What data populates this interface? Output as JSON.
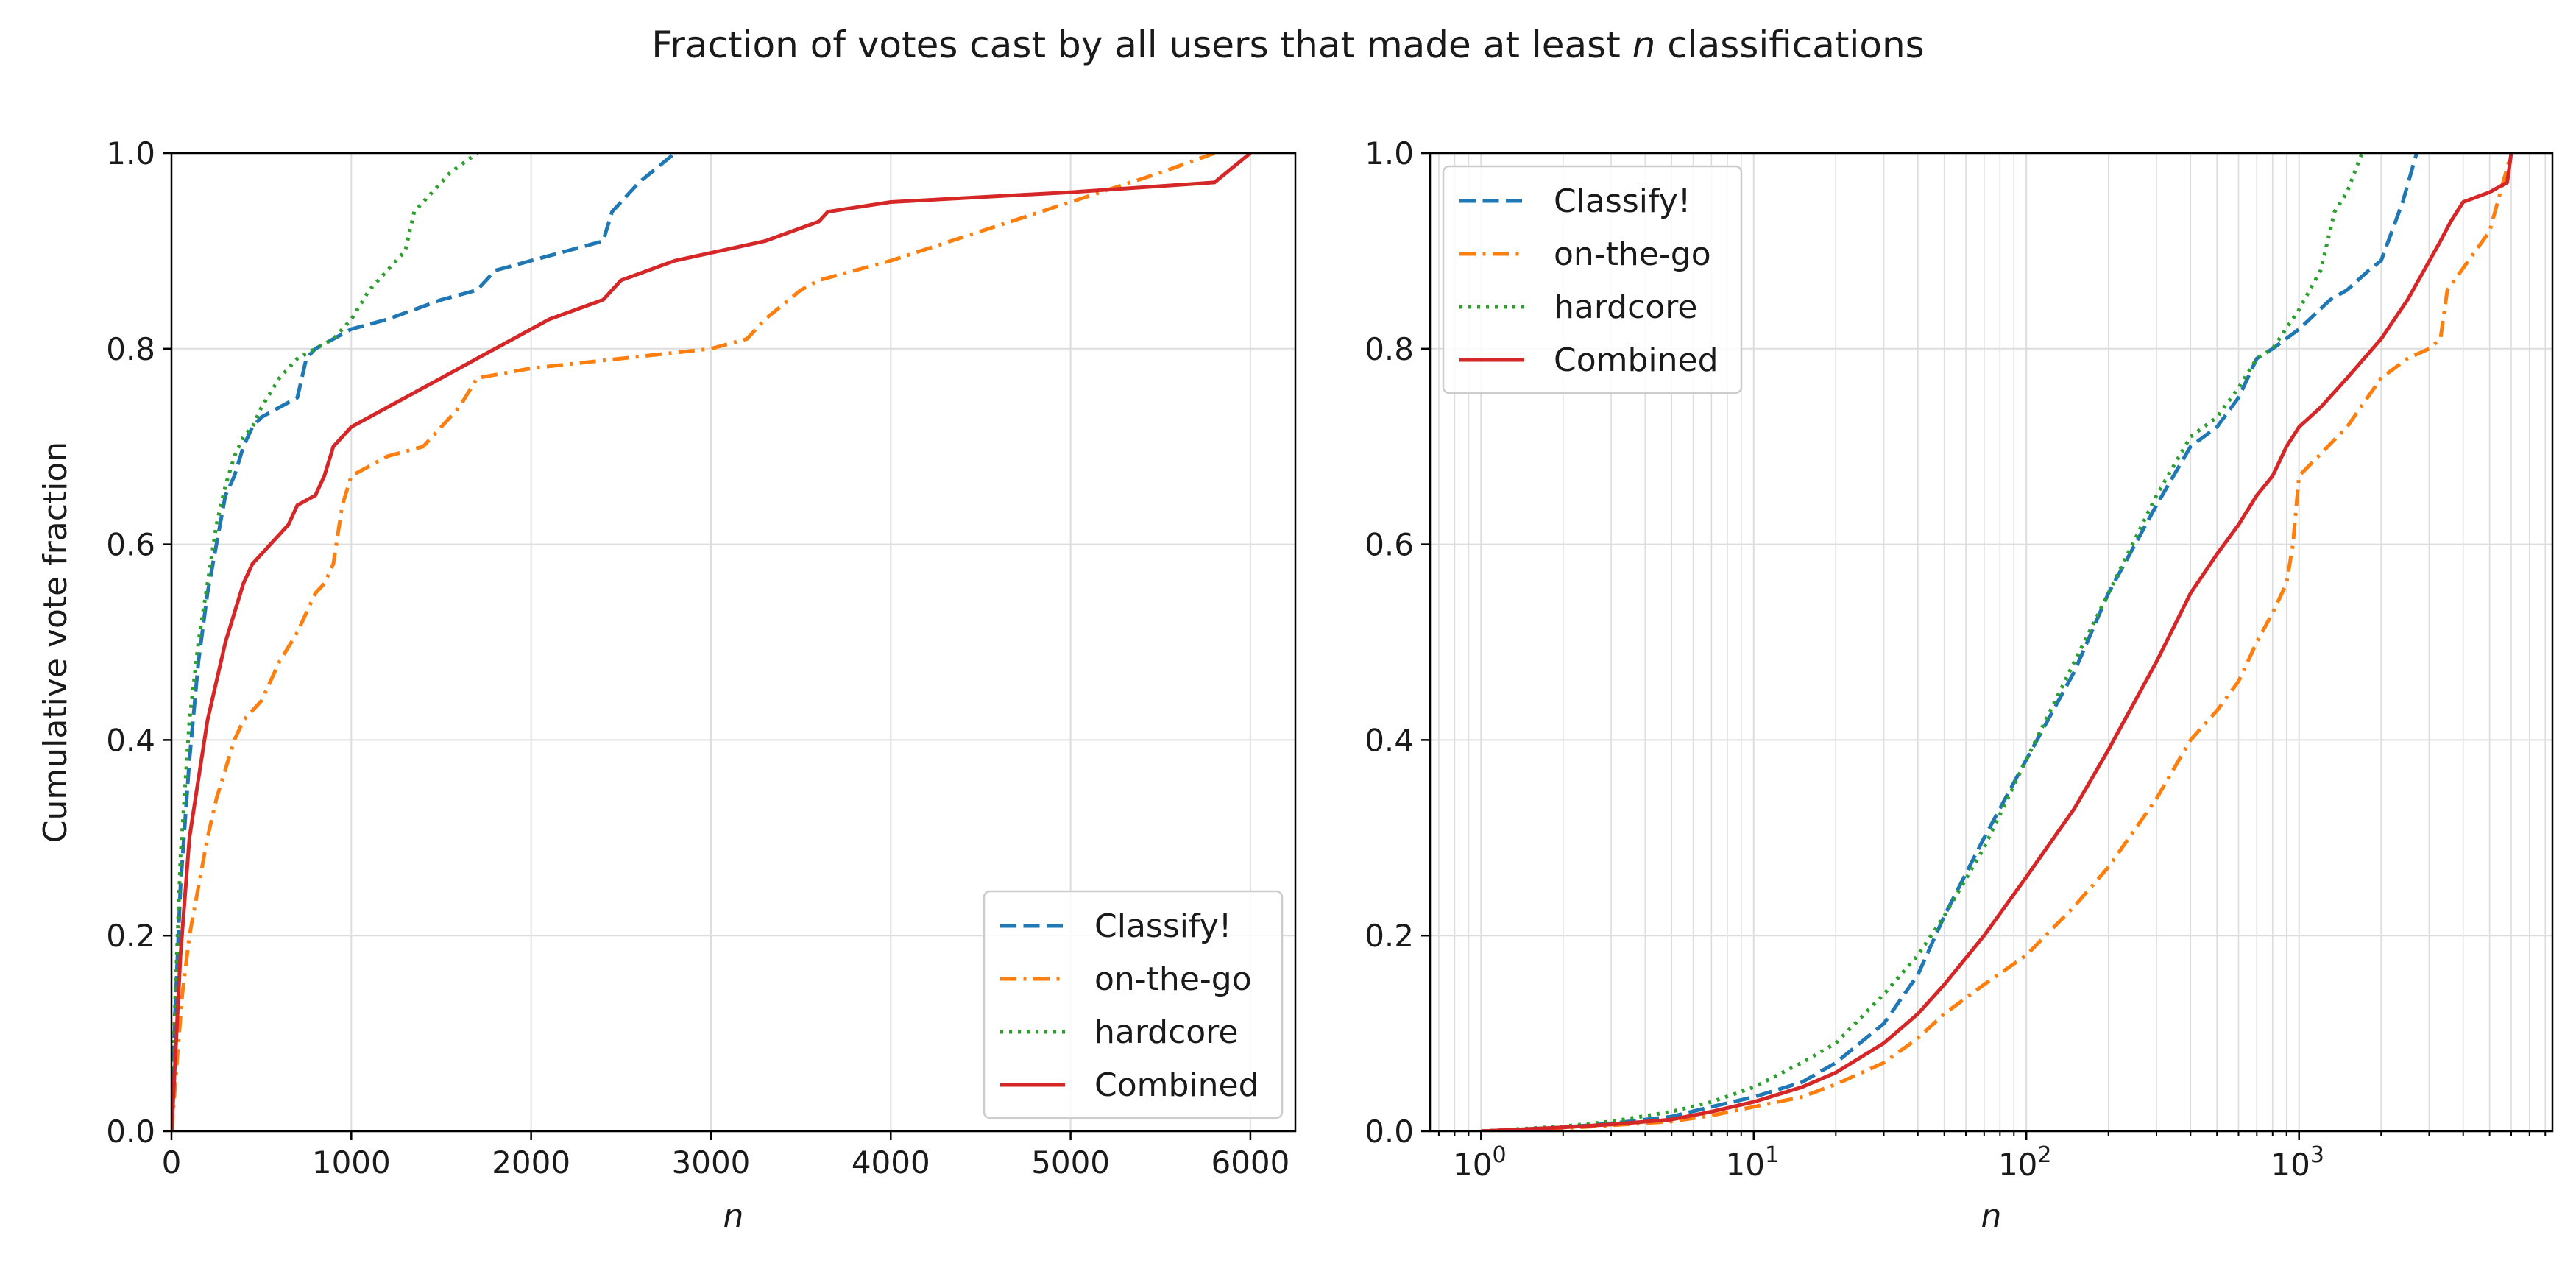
{
  "figure": {
    "title_pre": "Fraction of votes cast by all users that made at least ",
    "title_var": "n",
    "title_post": " classifications"
  },
  "colors": {
    "classify": "#1f77b4",
    "onthego": "#ff7f0e",
    "hardcore": "#2ca02c",
    "combined": "#d62728",
    "grid": "#dddddd",
    "axis": "#000000"
  },
  "chart_data": [
    {
      "type": "line",
      "xscale": "linear",
      "xlabel": "n",
      "ylabel": "Cumulative vote fraction",
      "xlim": [
        0,
        6250
      ],
      "ylim": [
        0,
        1
      ],
      "xticks": [
        0,
        1000,
        2000,
        3000,
        4000,
        5000,
        6000
      ],
      "xtick_labels": [
        "0",
        "1000",
        "2000",
        "3000",
        "4000",
        "5000",
        "6000"
      ],
      "yticks": [
        0,
        0.2,
        0.4,
        0.6,
        0.8,
        1.0
      ],
      "ytick_labels": [
        "0.0",
        "0.2",
        "0.4",
        "0.6",
        "0.8",
        "1.0"
      ],
      "grid": true,
      "legend_position": "lower-right",
      "series": [
        {
          "name": "Classify!",
          "style": "dashed",
          "x": [
            1,
            20,
            50,
            100,
            150,
            200,
            250,
            300,
            350,
            400,
            450,
            500,
            600,
            700,
            750,
            800,
            900,
            1000,
            1200,
            1500,
            1700,
            1800,
            2000,
            2200,
            2400,
            2450,
            2500,
            2600,
            2800
          ],
          "y": [
            0.0,
            0.12,
            0.25,
            0.38,
            0.48,
            0.55,
            0.6,
            0.65,
            0.67,
            0.7,
            0.72,
            0.73,
            0.74,
            0.75,
            0.79,
            0.8,
            0.81,
            0.82,
            0.83,
            0.85,
            0.86,
            0.88,
            0.89,
            0.9,
            0.91,
            0.94,
            0.95,
            0.97,
            1.0
          ]
        },
        {
          "name": "on-the-go",
          "style": "dashdot",
          "x": [
            1,
            30,
            60,
            100,
            150,
            200,
            250,
            300,
            350,
            400,
            450,
            500,
            550,
            600,
            700,
            750,
            800,
            850,
            900,
            950,
            1000,
            1200,
            1400,
            1500,
            1600,
            1700,
            2000,
            2500,
            3000,
            3200,
            3300,
            3500,
            3600,
            4000,
            4500,
            5000,
            5500,
            5800
          ],
          "y": [
            0.0,
            0.07,
            0.14,
            0.2,
            0.25,
            0.3,
            0.34,
            0.37,
            0.4,
            0.42,
            0.43,
            0.44,
            0.46,
            0.48,
            0.51,
            0.53,
            0.55,
            0.56,
            0.58,
            0.64,
            0.67,
            0.69,
            0.7,
            0.72,
            0.74,
            0.77,
            0.78,
            0.79,
            0.8,
            0.81,
            0.83,
            0.86,
            0.87,
            0.89,
            0.92,
            0.95,
            0.98,
            1.0
          ]
        },
        {
          "name": "hardcore",
          "style": "dotted",
          "x": [
            1,
            20,
            50,
            100,
            150,
            200,
            250,
            300,
            350,
            400,
            450,
            500,
            600,
            700,
            800,
            900,
            1000,
            1100,
            1200,
            1300,
            1350,
            1450,
            1550,
            1700
          ],
          "y": [
            0.0,
            0.13,
            0.28,
            0.42,
            0.5,
            0.56,
            0.62,
            0.66,
            0.69,
            0.71,
            0.72,
            0.74,
            0.77,
            0.79,
            0.8,
            0.81,
            0.83,
            0.86,
            0.88,
            0.9,
            0.94,
            0.96,
            0.98,
            1.0
          ]
        },
        {
          "name": "Combined",
          "style": "solid",
          "x": [
            1,
            50,
            100,
            150,
            200,
            250,
            300,
            350,
            400,
            450,
            500,
            550,
            600,
            650,
            700,
            800,
            850,
            900,
            950,
            1000,
            1100,
            1200,
            1300,
            1400,
            1500,
            1600,
            1700,
            1900,
            2100,
            2400,
            2500,
            2800,
            3300,
            3600,
            3650,
            4000,
            5000,
            5800,
            6000
          ],
          "y": [
            0.0,
            0.18,
            0.3,
            0.36,
            0.42,
            0.46,
            0.5,
            0.53,
            0.56,
            0.58,
            0.59,
            0.6,
            0.61,
            0.62,
            0.64,
            0.65,
            0.67,
            0.7,
            0.71,
            0.72,
            0.73,
            0.74,
            0.75,
            0.76,
            0.77,
            0.78,
            0.79,
            0.81,
            0.83,
            0.85,
            0.87,
            0.89,
            0.91,
            0.93,
            0.94,
            0.95,
            0.96,
            0.97,
            1.0
          ]
        }
      ]
    },
    {
      "type": "line",
      "xscale": "log",
      "xlabel": "n",
      "ylabel": "",
      "xlim": [
        0.65,
        8500
      ],
      "ylim": [
        0,
        1
      ],
      "xticks": [
        1,
        10,
        100,
        1000
      ],
      "xtick_bases": [
        "10",
        "10",
        "10",
        "10"
      ],
      "xtick_exponents": [
        "0",
        "1",
        "2",
        "3"
      ],
      "yticks": [
        0,
        0.2,
        0.4,
        0.6,
        0.8,
        1.0
      ],
      "ytick_labels": [
        "0.0",
        "0.2",
        "0.4",
        "0.6",
        "0.8",
        "1.0"
      ],
      "grid": true,
      "legend_position": "upper-left",
      "series": [
        {
          "name": "Classify!",
          "style": "dashed",
          "x": [
            1,
            2,
            3,
            5,
            7,
            10,
            15,
            20,
            30,
            40,
            50,
            70,
            100,
            150,
            200,
            300,
            400,
            500,
            600,
            700,
            800,
            1000,
            1300,
            1500,
            1800,
            2000,
            2400,
            2700
          ],
          "y": [
            0.0,
            0.004,
            0.008,
            0.015,
            0.025,
            0.035,
            0.05,
            0.07,
            0.11,
            0.16,
            0.22,
            0.3,
            0.38,
            0.47,
            0.55,
            0.64,
            0.7,
            0.72,
            0.75,
            0.79,
            0.8,
            0.82,
            0.85,
            0.86,
            0.88,
            0.89,
            0.95,
            1.0
          ]
        },
        {
          "name": "on-the-go",
          "style": "dashdot",
          "x": [
            1,
            2,
            3,
            5,
            7,
            10,
            15,
            20,
            30,
            40,
            50,
            70,
            100,
            150,
            200,
            300,
            400,
            500,
            600,
            700,
            800,
            900,
            950,
            1000,
            1500,
            2000,
            2500,
            3000,
            3300,
            3500,
            5000,
            6000
          ],
          "y": [
            0.0,
            0.003,
            0.006,
            0.01,
            0.016,
            0.025,
            0.035,
            0.048,
            0.07,
            0.095,
            0.12,
            0.15,
            0.18,
            0.23,
            0.27,
            0.34,
            0.4,
            0.43,
            0.46,
            0.5,
            0.53,
            0.56,
            0.6,
            0.67,
            0.72,
            0.77,
            0.79,
            0.8,
            0.81,
            0.86,
            0.92,
            1.0
          ]
        },
        {
          "name": "hardcore",
          "style": "dotted",
          "x": [
            1,
            2,
            3,
            5,
            7,
            10,
            15,
            20,
            30,
            40,
            50,
            70,
            100,
            150,
            200,
            300,
            400,
            500,
            600,
            700,
            800,
            1000,
            1200,
            1350,
            1500,
            1700
          ],
          "y": [
            0.0,
            0.005,
            0.01,
            0.02,
            0.03,
            0.045,
            0.07,
            0.09,
            0.14,
            0.18,
            0.22,
            0.29,
            0.38,
            0.48,
            0.55,
            0.65,
            0.71,
            0.73,
            0.76,
            0.79,
            0.8,
            0.84,
            0.88,
            0.94,
            0.96,
            1.0
          ]
        },
        {
          "name": "Combined",
          "style": "solid",
          "x": [
            1,
            2,
            3,
            5,
            7,
            10,
            15,
            20,
            30,
            40,
            50,
            70,
            100,
            150,
            200,
            300,
            400,
            500,
            600,
            700,
            800,
            900,
            1000,
            1200,
            1500,
            2000,
            2500,
            3300,
            3600,
            4000,
            5000,
            5800,
            6000
          ],
          "y": [
            0.0,
            0.004,
            0.007,
            0.012,
            0.02,
            0.03,
            0.045,
            0.06,
            0.09,
            0.12,
            0.15,
            0.2,
            0.26,
            0.33,
            0.39,
            0.48,
            0.55,
            0.59,
            0.62,
            0.65,
            0.67,
            0.7,
            0.72,
            0.74,
            0.77,
            0.81,
            0.85,
            0.91,
            0.93,
            0.95,
            0.96,
            0.97,
            1.0
          ]
        }
      ]
    }
  ]
}
